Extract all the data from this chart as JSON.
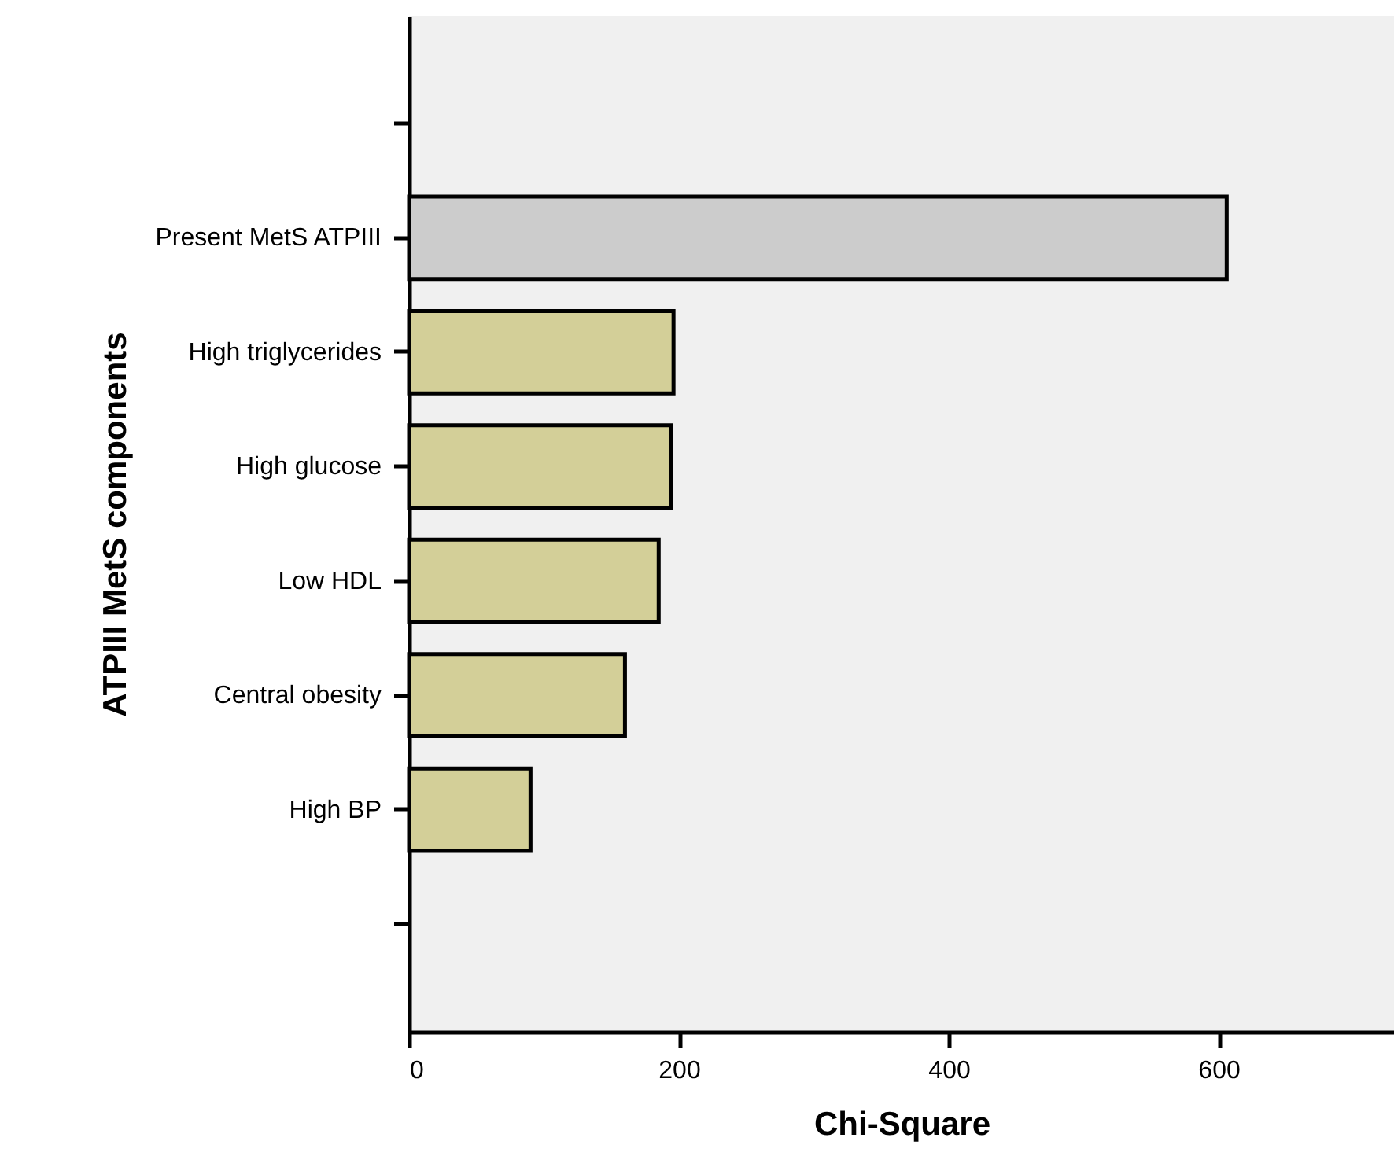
{
  "chart_data": {
    "type": "bar",
    "orientation": "horizontal",
    "xlabel": "Chi-Square",
    "ylabel": "ATPIII MetS components",
    "categories": [
      null,
      "Present MetS ATPIII",
      "High triglycerides",
      "High glucose",
      "Low HDL",
      "Central obesity",
      "High BP",
      null
    ],
    "values": [
      null,
      606,
      196,
      194,
      185,
      160,
      90,
      null
    ],
    "colors": [
      null,
      "#cccccc",
      "#d3cf98",
      "#d3cf98",
      "#d3cf98",
      "#d3cf98",
      "#d3cf98",
      null
    ],
    "xlim": [
      0,
      730
    ],
    "xticks": [
      0,
      200,
      400,
      600
    ],
    "grid": false
  }
}
